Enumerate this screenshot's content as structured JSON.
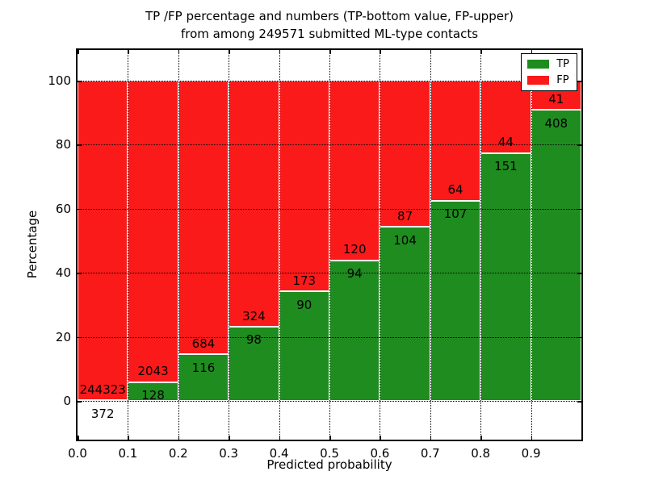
{
  "figure": {
    "title_line1": "TP /FP percentage and numbers (TP-bottom value, FP-upper)",
    "title_line2": "from among 249571 submitted ML-type contacts",
    "xlabel": "Predicted probability",
    "ylabel": "Percentage"
  },
  "legend": {
    "position": "upper right",
    "entries": [
      {
        "label": "TP",
        "color": "#1f8c1f"
      },
      {
        "label": "FP",
        "color": "#fa1a1a"
      }
    ]
  },
  "chart_data": {
    "type": "bar",
    "subtype": "stacked-percentage",
    "title": "TP /FP percentage and numbers (TP-bottom value, FP-upper) from among 249571 submitted ML-type contacts",
    "xlabel": "Predicted probability",
    "ylabel": "Percentage",
    "total_submitted_contacts": 249571,
    "grid": true,
    "legend_position": "upper right",
    "xlim": [
      0.0,
      1.0
    ],
    "ylim": [
      -12.1,
      109.6
    ],
    "x_tick_labels": [
      "0.0",
      "0.1",
      "0.2",
      "0.3",
      "0.4",
      "0.5",
      "0.6",
      "0.7",
      "0.8",
      "0.9"
    ],
    "y_ticks": [
      0,
      20,
      40,
      60,
      80,
      100
    ],
    "y_tick_labels": [
      "0",
      "20",
      "40",
      "60",
      "80",
      "100"
    ],
    "bins": [
      "0.0-0.1",
      "0.1-0.2",
      "0.2-0.3",
      "0.3-0.4",
      "0.4-0.5",
      "0.5-0.6",
      "0.6-0.7",
      "0.7-0.8",
      "0.8-0.9",
      "0.9-1.0"
    ],
    "series": [
      {
        "name": "TP",
        "color": "#1f8c1f",
        "counts": [
          372,
          128,
          116,
          98,
          90,
          94,
          104,
          107,
          151,
          408
        ],
        "percent": [
          0.15,
          5.9,
          14.5,
          23.22,
          34.22,
          43.93,
          54.45,
          62.57,
          77.44,
          90.87
        ]
      },
      {
        "name": "FP",
        "color": "#fa1a1a",
        "counts": [
          244323,
          2043,
          684,
          324,
          173,
          120,
          87,
          64,
          44,
          41
        ],
        "percent": [
          99.85,
          94.1,
          85.5,
          76.78,
          65.78,
          56.07,
          45.55,
          37.43,
          22.56,
          9.13
        ]
      }
    ]
  }
}
